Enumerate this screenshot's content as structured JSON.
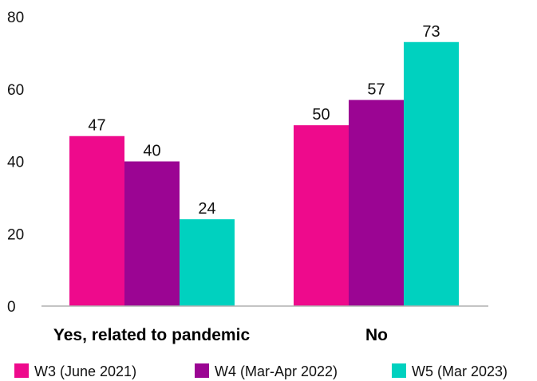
{
  "chart_data": {
    "type": "bar",
    "categories": [
      "Yes, related to pandemic",
      "No"
    ],
    "series": [
      {
        "name": "W3 (June 2021)",
        "color": "#ee0a8c",
        "values": [
          47,
          50
        ]
      },
      {
        "name": "W4 (Mar-Apr 2022)",
        "color": "#9b0593",
        "values": [
          40,
          57
        ]
      },
      {
        "name": "W5 (Mar 2023)",
        "color": "#00d1bf",
        "values": [
          24,
          73
        ]
      }
    ],
    "title": "",
    "xlabel": "",
    "ylabel": "",
    "ylim": [
      0,
      80
    ],
    "yticks": [
      0,
      20,
      40,
      60,
      80
    ],
    "grid": false,
    "data_labels": true,
    "legend_position": "bottom"
  }
}
